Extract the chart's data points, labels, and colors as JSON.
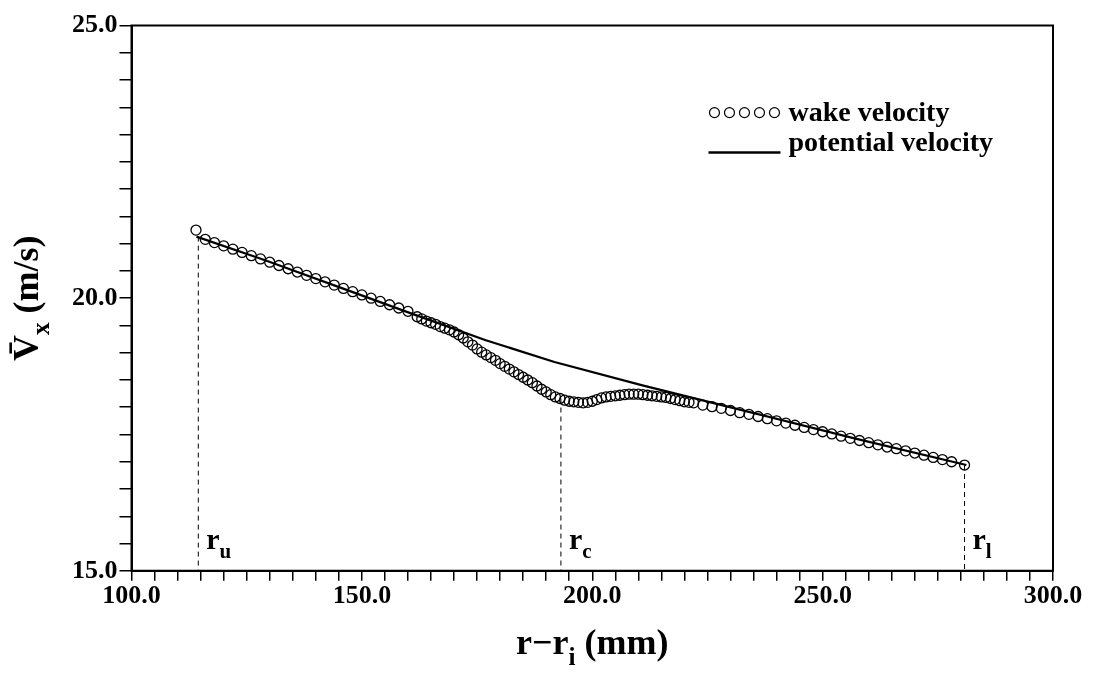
{
  "chart_data": {
    "type": "scatter",
    "xlabel": "r−r$_{i}$ (mm)",
    "ylabel": "V̄$_{x}$ (m/s)",
    "xlim": [
      100,
      300
    ],
    "ylim": [
      15,
      25
    ],
    "xticks": [
      {
        "value": 100,
        "label": "100.0"
      },
      {
        "value": 105,
        "label": null
      },
      {
        "value": 110,
        "label": null
      },
      {
        "value": 115,
        "label": null
      },
      {
        "value": 120,
        "label": null
      },
      {
        "value": 125,
        "label": null
      },
      {
        "value": 130,
        "label": null
      },
      {
        "value": 135,
        "label": null
      },
      {
        "value": 140,
        "label": null
      },
      {
        "value": 145,
        "label": null
      },
      {
        "value": 150,
        "label": "150.0"
      },
      {
        "value": 155,
        "label": null
      },
      {
        "value": 160,
        "label": null
      },
      {
        "value": 165,
        "label": null
      },
      {
        "value": 170,
        "label": null
      },
      {
        "value": 175,
        "label": null
      },
      {
        "value": 180,
        "label": null
      },
      {
        "value": 185,
        "label": null
      },
      {
        "value": 190,
        "label": null
      },
      {
        "value": 195,
        "label": null
      },
      {
        "value": 200,
        "label": "200.0"
      },
      {
        "value": 205,
        "label": null
      },
      {
        "value": 210,
        "label": null
      },
      {
        "value": 215,
        "label": null
      },
      {
        "value": 220,
        "label": null
      },
      {
        "value": 225,
        "label": null
      },
      {
        "value": 230,
        "label": null
      },
      {
        "value": 235,
        "label": null
      },
      {
        "value": 240,
        "label": null
      },
      {
        "value": 245,
        "label": null
      },
      {
        "value": 250,
        "label": "250.0"
      },
      {
        "value": 255,
        "label": null
      },
      {
        "value": 260,
        "label": null
      },
      {
        "value": 265,
        "label": null
      },
      {
        "value": 270,
        "label": null
      },
      {
        "value": 275,
        "label": null
      },
      {
        "value": 280,
        "label": null
      },
      {
        "value": 285,
        "label": null
      },
      {
        "value": 290,
        "label": null
      },
      {
        "value": 295,
        "label": null
      },
      {
        "value": 300,
        "label": "300.0"
      }
    ],
    "yticks": [
      {
        "value": 15,
        "label": "15.0"
      },
      {
        "value": 15.5,
        "label": null
      },
      {
        "value": 16,
        "label": null
      },
      {
        "value": 16.5,
        "label": null
      },
      {
        "value": 17,
        "label": null
      },
      {
        "value": 17.5,
        "label": null
      },
      {
        "value": 18,
        "label": null
      },
      {
        "value": 18.5,
        "label": null
      },
      {
        "value": 19,
        "label": null
      },
      {
        "value": 19.5,
        "label": null
      },
      {
        "value": 20,
        "label": "20.0"
      },
      {
        "value": 20.5,
        "label": null
      },
      {
        "value": 21,
        "label": null
      },
      {
        "value": 21.5,
        "label": null
      },
      {
        "value": 22,
        "label": null
      },
      {
        "value": 22.5,
        "label": null
      },
      {
        "value": 23,
        "label": null
      },
      {
        "value": 23.5,
        "label": null
      },
      {
        "value": 24,
        "label": null
      },
      {
        "value": 24.5,
        "label": null
      },
      {
        "value": 25,
        "label": "25.0"
      }
    ],
    "grid": false,
    "legend": "top right",
    "series": [
      {
        "name": "wake velocity",
        "marker": "circle",
        "color": "#000000",
        "x": [
          114,
          116,
          118,
          120,
          122,
          124,
          126,
          128,
          130,
          132,
          134,
          136,
          138,
          140,
          142,
          144,
          146,
          148,
          150,
          152,
          154,
          156,
          158,
          160,
          162,
          163,
          164,
          165,
          166,
          167,
          168,
          169,
          170,
          171,
          172,
          173,
          174,
          175,
          176,
          177,
          178,
          179,
          180,
          181,
          182,
          183,
          184,
          185,
          186,
          187,
          188,
          189,
          190,
          191,
          192,
          193,
          194,
          195,
          196,
          197,
          198,
          199,
          200,
          201,
          202,
          203,
          204,
          205,
          206,
          207,
          208,
          209,
          210,
          211,
          212,
          213,
          214,
          215,
          216,
          217,
          218,
          219,
          220,
          221,
          222,
          224,
          226,
          228,
          230,
          232,
          234,
          236,
          238,
          240,
          242,
          244,
          246,
          248,
          250,
          252,
          254,
          256,
          258,
          260,
          262,
          264,
          266,
          268,
          270,
          272,
          274,
          276,
          278,
          280.8
        ],
        "values": [
          21.25,
          21.08,
          21.02,
          20.96,
          20.9,
          20.84,
          20.78,
          20.72,
          20.66,
          20.6,
          20.54,
          20.48,
          20.42,
          20.36,
          20.3,
          20.24,
          20.18,
          20.12,
          20.06,
          20.0,
          19.94,
          19.88,
          19.82,
          19.76,
          19.66,
          19.62,
          19.58,
          19.55,
          19.52,
          19.48,
          19.45,
          19.42,
          19.38,
          19.33,
          19.27,
          19.2,
          19.14,
          19.07,
          19.01,
          18.96,
          18.91,
          18.86,
          18.8,
          18.75,
          18.7,
          18.65,
          18.6,
          18.55,
          18.5,
          18.45,
          18.39,
          18.33,
          18.28,
          18.23,
          18.19,
          18.16,
          18.13,
          18.11,
          18.1,
          18.09,
          18.08,
          18.09,
          18.11,
          18.14,
          18.17,
          18.19,
          18.2,
          18.21,
          18.22,
          18.23,
          18.24,
          18.24,
          18.24,
          18.23,
          18.22,
          18.21,
          18.2,
          18.19,
          18.18,
          18.16,
          18.14,
          18.12,
          18.1,
          18.09,
          18.08,
          18.04,
          18.01,
          17.98,
          17.94,
          17.9,
          17.87,
          17.83,
          17.79,
          17.75,
          17.71,
          17.67,
          17.63,
          17.59,
          17.55,
          17.51,
          17.47,
          17.43,
          17.39,
          17.35,
          17.31,
          17.27,
          17.24,
          17.2,
          17.16,
          17.12,
          17.08,
          17.04,
          17.0,
          16.94
        ]
      },
      {
        "name": "potential velocity",
        "type": "line",
        "marker": "none",
        "line_style": "solid",
        "color": "#000000",
        "x": [
          114.1,
          129.9,
          145.8,
          161.7,
          176.9,
          191.8,
          210.9,
          234.2,
          256.9,
          281.2
        ],
        "values": [
          21.13,
          20.67,
          20.18,
          19.69,
          19.23,
          18.83,
          18.4,
          17.91,
          17.43,
          16.94
        ]
      }
    ],
    "ref_lines": [
      {
        "axis": "x",
        "value": 114.5,
        "label": "r$_{u}$",
        "line_style": "dashed",
        "color": "#000000"
      },
      {
        "axis": "x",
        "value": 193.2,
        "label": "r$_{c}$",
        "line_style": "dashed",
        "color": "#000000"
      },
      {
        "axis": "x",
        "value": 280.8,
        "label": "r$_{l}$",
        "line_style": "dashed",
        "color": "#000000"
      }
    ]
  }
}
